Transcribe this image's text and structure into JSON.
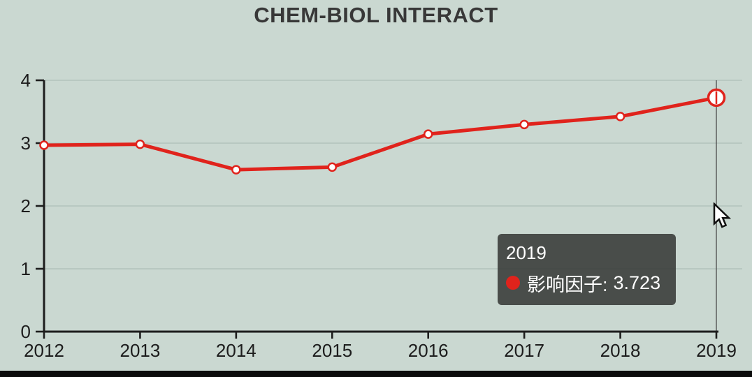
{
  "title": "CHEM-BIOL INTERACT",
  "chart_data": {
    "type": "line",
    "title": "CHEM-BIOL INTERACT",
    "categories": [
      "2012",
      "2013",
      "2014",
      "2015",
      "2016",
      "2017",
      "2018",
      "2019"
    ],
    "series": [
      {
        "name": "影响因子",
        "values": [
          2.967,
          2.982,
          2.577,
          2.618,
          3.143,
          3.296,
          3.424,
          3.723
        ]
      }
    ],
    "xlabel": "",
    "ylabel": "",
    "ylim": [
      0,
      4
    ],
    "yticks": [
      0,
      1,
      2,
      3,
      4
    ],
    "grid": true,
    "legend_position": "none",
    "highlight_index": 7
  },
  "tooltip": {
    "title": "2019",
    "label": "影响因子:",
    "value": "3.723"
  },
  "colors": {
    "background": "#cad8d1",
    "line": "#e0231c",
    "marker_fill": "#ffffff",
    "axis": "#1d1d1d",
    "grid": "rgba(110,135,125,0.30)",
    "crosshair": "#4a4a4a",
    "tooltip_bg": "rgba(55,57,55,0.88)",
    "tooltip_text": "#ffffff",
    "bottom_bar": "#0b0b0b"
  }
}
